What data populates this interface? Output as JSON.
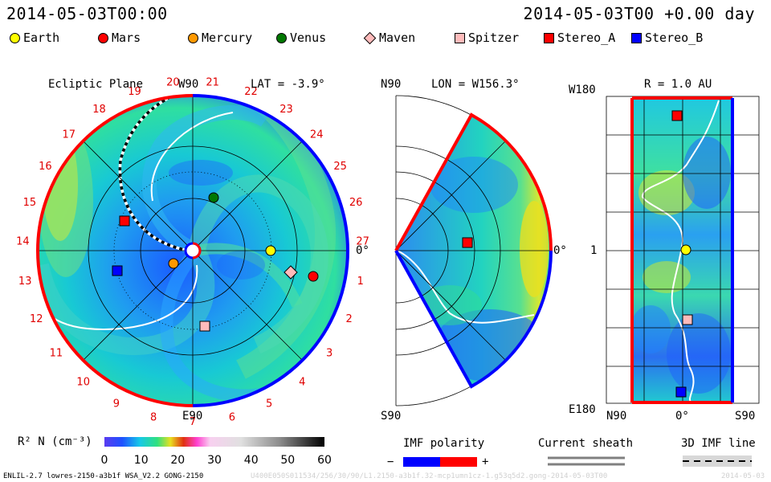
{
  "header": {
    "timestamp": "2014-05-03T00:00",
    "elapsed": "2014-05-03T00 +0.00 day"
  },
  "legend": [
    {
      "label": "Earth",
      "shape": "circle",
      "color": "#ffff00"
    },
    {
      "label": "Mars",
      "shape": "circle",
      "color": "#ff0000"
    },
    {
      "label": "Mercury",
      "shape": "circle",
      "color": "#ff9900"
    },
    {
      "label": "Venus",
      "shape": "circle",
      "color": "#007700"
    },
    {
      "label": "Maven",
      "shape": "diamond",
      "color": "#ffbbbb"
    },
    {
      "label": "Spitzer",
      "shape": "square",
      "color": "#ffbbbb"
    },
    {
      "label": "Stereo_A",
      "shape": "square",
      "color": "#ff0000"
    },
    {
      "label": "Stereo_B",
      "shape": "square",
      "color": "#0000ff"
    }
  ],
  "ecliptic": {
    "title": "Ecliptic Plane",
    "top_label": "W90",
    "bottom_label": "E90",
    "lat_label": "LAT = -3.9°",
    "right_label": "0°",
    "rotations": [
      "19",
      "20",
      "21",
      "22",
      "23",
      "24",
      "25",
      "26",
      "27",
      "1",
      "2",
      "3",
      "4",
      "5",
      "6",
      "7",
      "8",
      "9",
      "10",
      "11",
      "12",
      "13",
      "14",
      "15",
      "16",
      "17",
      "18"
    ]
  },
  "meridional": {
    "lon_label": "LON = W156.3°",
    "top_label": "N90",
    "bottom_label": "S90",
    "right_label": "0°"
  },
  "radial": {
    "title": "R = 1.0 AU",
    "top_left": "W180",
    "mid_left": "1",
    "bottom_left": "E180",
    "bottom_labels": [
      "N90",
      "0°",
      "S90"
    ]
  },
  "colorbar": {
    "label": "R² N (cm⁻³)",
    "ticks": [
      "0",
      "10",
      "20",
      "30",
      "40",
      "50",
      "60"
    ]
  },
  "imf": {
    "label": "IMF polarity",
    "minus": "−",
    "plus": "+"
  },
  "current_sheath": {
    "label": "Current sheath"
  },
  "imf_line": {
    "label": "3D IMF line"
  },
  "footer": {
    "model": "ENLIL-2.7 lowres-2150-a3b1f WSA_V2.2 GONG-2150",
    "run_id": "U400E050S011534/256/30/90/L1.2150-a3b1f.32-mcp1umn1cz-1.g53q5d2.gong-2014-05-03T00",
    "date": "2014-05-03"
  }
}
